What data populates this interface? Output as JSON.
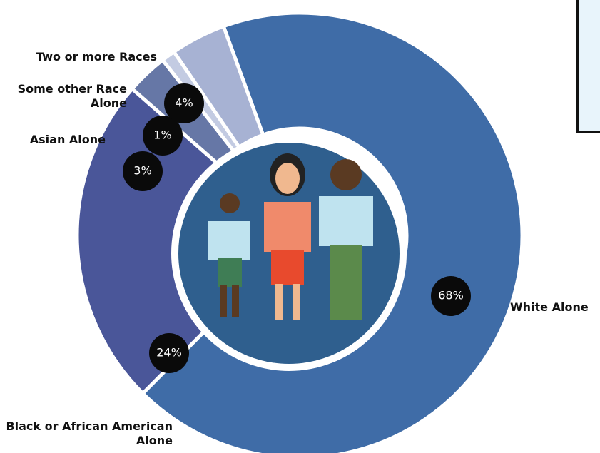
{
  "chart_data": {
    "type": "donut",
    "categories": [
      "White Alone",
      "Black or African American Alone",
      "Asian Alone",
      "Some other Race Alone",
      "Two or more Races"
    ],
    "values": [
      68,
      24,
      3,
      1,
      4
    ],
    "value_labels": [
      "68%",
      "24%",
      "3%",
      "1%",
      "4%"
    ],
    "colors": [
      "#3f6ca7",
      "#4a5699",
      "#6677a6",
      "#c3cbe2",
      "#a7b2d3"
    ]
  }
}
